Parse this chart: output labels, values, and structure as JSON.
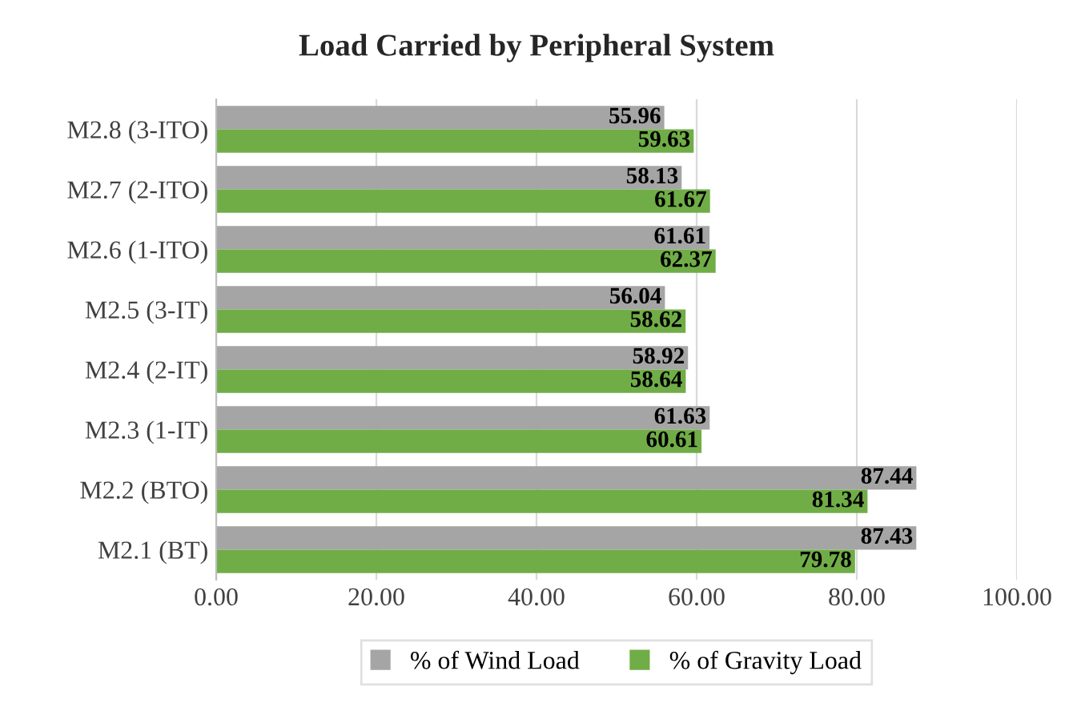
{
  "chart_data": {
    "type": "bar",
    "orientation": "horizontal",
    "title": "Load Carried by Peripheral System",
    "categories": [
      "M2.8 (3-ITO)",
      "M2.7 (2-ITO)",
      "M2.6 (1-ITO)",
      "M2.5 (3-IT)",
      "M2.4 (2-IT)",
      "M2.3 (1-IT)",
      "M2.2 (BTO)",
      "M2.1 (BT)"
    ],
    "series": [
      {
        "name": "% of Wind Load",
        "color": "#a5a5a5",
        "values": [
          55.96,
          58.13,
          61.61,
          56.04,
          58.92,
          61.63,
          87.44,
          87.43
        ]
      },
      {
        "name": "% of Gravity Load",
        "color": "#70ad47",
        "values": [
          59.63,
          61.67,
          62.37,
          58.62,
          58.64,
          60.61,
          81.34,
          79.78
        ]
      }
    ],
    "xlim": [
      0,
      100
    ],
    "xticks": [
      {
        "value": 0,
        "label": "0.00"
      },
      {
        "value": 20,
        "label": "20.00"
      },
      {
        "value": 40,
        "label": "40.00"
      },
      {
        "value": 60,
        "label": "60.00"
      },
      {
        "value": 80,
        "label": "80.00"
      },
      {
        "value": 100,
        "label": "100.00"
      }
    ],
    "grid": "x",
    "legend": "bottom",
    "data_labels": true
  }
}
